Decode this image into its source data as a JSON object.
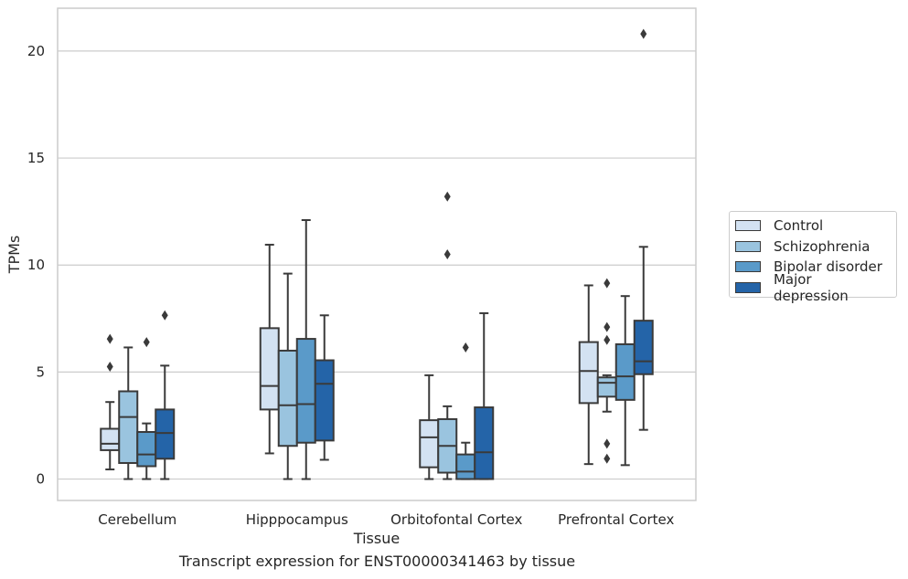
{
  "caption": "Transcript expression for ENST00000341463 by tissue",
  "chart_data": {
    "type": "box",
    "title": "",
    "xlabel": "Tissue",
    "ylabel": "TPMs",
    "ylim": [
      -1,
      22
    ],
    "yticks": [
      0,
      5,
      10,
      15,
      20
    ],
    "categories": [
      "Cerebellum",
      "Hipppocampus",
      "Orbitofontal Cortex",
      "Prefrontal Cortex"
    ],
    "grid": "horizontal",
    "legend_position": "right",
    "series": [
      {
        "name": "Control",
        "color": "#d3e2f2",
        "boxes": [
          {
            "whislo": 0.45,
            "q1": 1.35,
            "med": 1.65,
            "q3": 2.35,
            "whishi": 3.6,
            "fliers": [
              5.25,
              6.55
            ]
          },
          {
            "whislo": 1.2,
            "q1": 3.25,
            "med": 4.35,
            "q3": 7.05,
            "whishi": 10.95,
            "fliers": []
          },
          {
            "whislo": 0.0,
            "q1": 0.55,
            "med": 1.95,
            "q3": 2.75,
            "whishi": 4.85,
            "fliers": []
          },
          {
            "whislo": 0.7,
            "q1": 3.55,
            "med": 5.05,
            "q3": 6.4,
            "whishi": 9.05,
            "fliers": []
          }
        ]
      },
      {
        "name": "Schizophrenia",
        "color": "#9ac4df",
        "boxes": [
          {
            "whislo": 0.0,
            "q1": 0.75,
            "med": 2.9,
            "q3": 4.1,
            "whishi": 6.15,
            "fliers": []
          },
          {
            "whislo": 0.0,
            "q1": 1.55,
            "med": 3.45,
            "q3": 6.0,
            "whishi": 9.6,
            "fliers": []
          },
          {
            "whislo": 0.0,
            "q1": 0.3,
            "med": 1.55,
            "q3": 2.8,
            "whishi": 3.4,
            "fliers": [
              10.5,
              13.2
            ]
          },
          {
            "whislo": 3.15,
            "q1": 3.85,
            "med": 4.5,
            "q3": 4.75,
            "whishi": 4.85,
            "fliers": [
              0.95,
              1.65,
              6.5,
              7.1,
              9.15
            ]
          }
        ]
      },
      {
        "name": "Bipolar disorder",
        "color": "#5a9ac9",
        "boxes": [
          {
            "whislo": 0.0,
            "q1": 0.6,
            "med": 1.15,
            "q3": 2.2,
            "whishi": 2.6,
            "fliers": [
              6.4
            ]
          },
          {
            "whislo": 0.0,
            "q1": 1.7,
            "med": 3.5,
            "q3": 6.55,
            "whishi": 12.1,
            "fliers": []
          },
          {
            "whislo": 0.0,
            "q1": 0.0,
            "med": 0.35,
            "q3": 1.15,
            "whishi": 1.7,
            "fliers": [
              6.15
            ]
          },
          {
            "whislo": 0.65,
            "q1": 3.7,
            "med": 4.8,
            "q3": 6.3,
            "whishi": 8.55,
            "fliers": []
          }
        ]
      },
      {
        "name": "Major depression",
        "color": "#2464a8",
        "boxes": [
          {
            "whislo": 0.0,
            "q1": 0.95,
            "med": 2.15,
            "q3": 3.25,
            "whishi": 5.3,
            "fliers": [
              7.65
            ]
          },
          {
            "whislo": 0.9,
            "q1": 1.8,
            "med": 4.45,
            "q3": 5.55,
            "whishi": 7.65,
            "fliers": []
          },
          {
            "whislo": 0.0,
            "q1": 0.0,
            "med": 1.25,
            "q3": 3.35,
            "whishi": 7.75,
            "fliers": []
          },
          {
            "whislo": 2.3,
            "q1": 4.9,
            "med": 5.5,
            "q3": 7.4,
            "whishi": 10.85,
            "fliers": [
              20.8
            ]
          }
        ]
      }
    ]
  }
}
